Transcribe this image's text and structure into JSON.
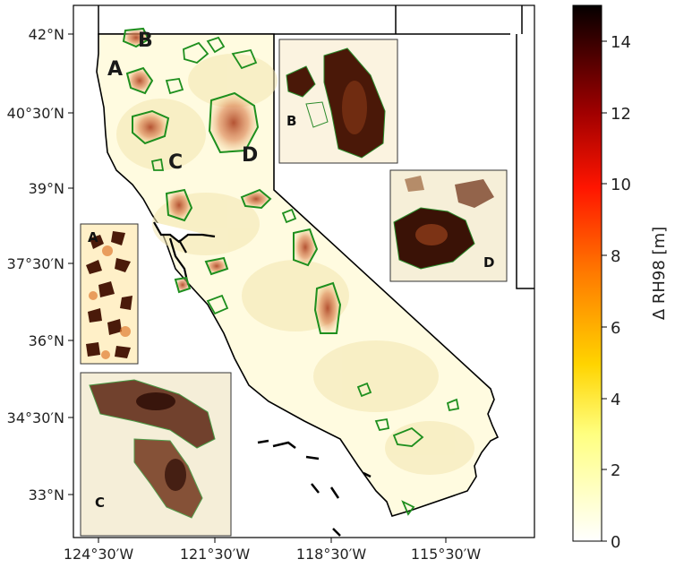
{
  "lat_ticks": [
    "42°N",
    "40°30′N",
    "39°N",
    "37°30′N",
    "36°N",
    "34°30′N",
    "33°N"
  ],
  "lon_ticks": [
    "124°30′W",
    "121°30′W",
    "118°30′W",
    "115°30′W"
  ],
  "site_labels": [
    "A",
    "B",
    "C",
    "D"
  ],
  "inset_labels": [
    "A",
    "B",
    "C",
    "D"
  ],
  "colorbar": {
    "title": "Δ RH98 [m]",
    "ticks": [
      "0",
      "2",
      "4",
      "6",
      "8",
      "10",
      "12",
      "14"
    ],
    "min": 0,
    "max": 15,
    "colors": [
      "#ffffff",
      "#ffff5c",
      "#ff8f00",
      "#ff1a00",
      "#b30000",
      "#5a0000",
      "#000000"
    ]
  }
}
